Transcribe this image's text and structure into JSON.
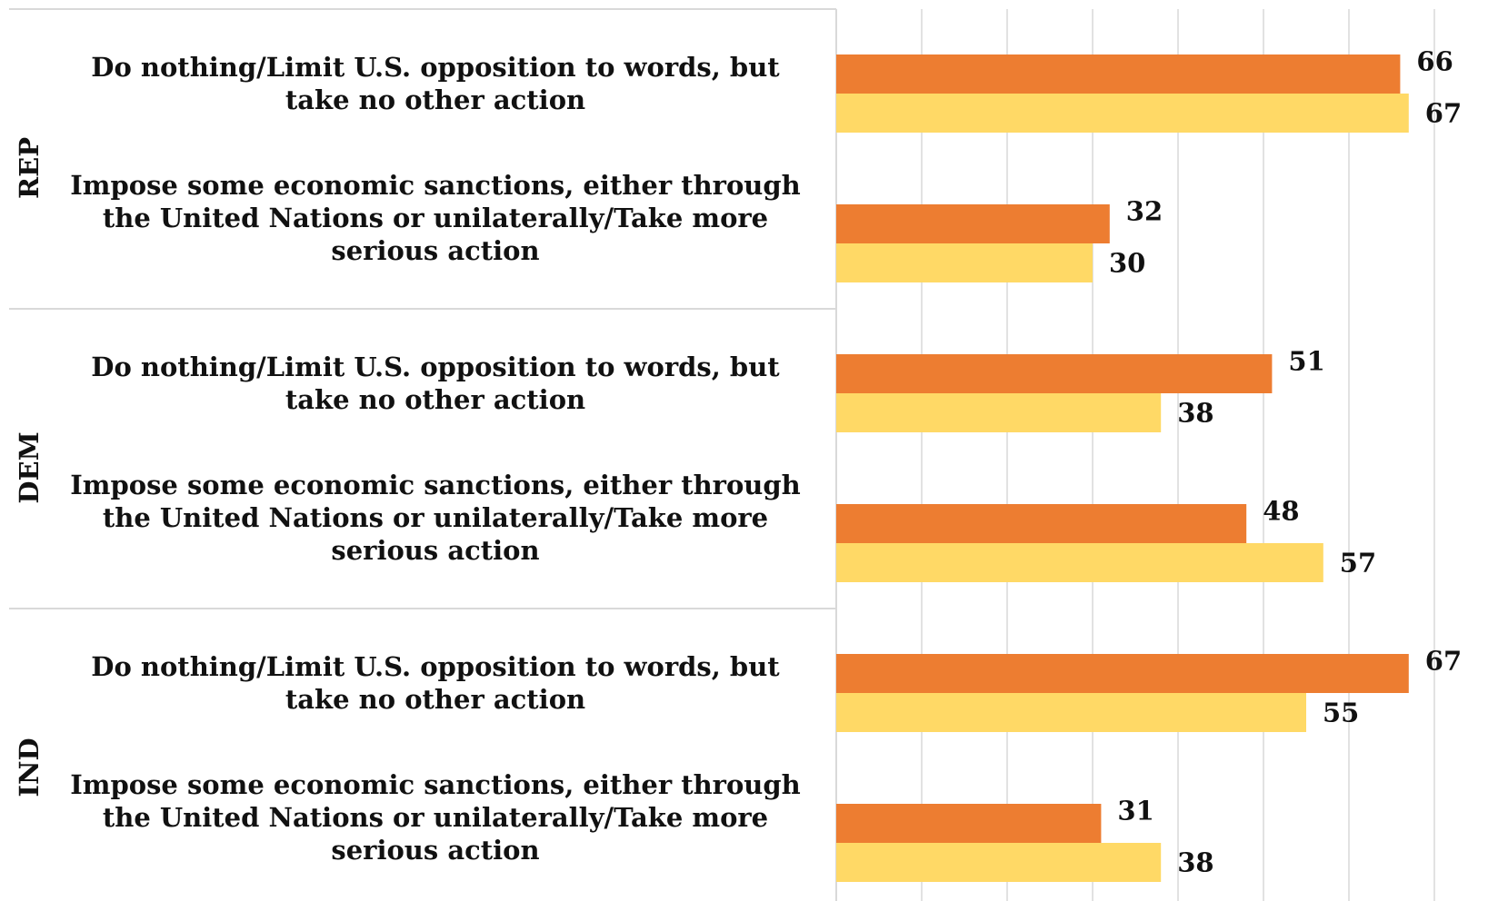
{
  "chart_data": {
    "type": "bar",
    "orientation": "horizontal",
    "xlim": [
      0,
      70
    ],
    "grid": true,
    "legend": "none",
    "series": [
      {
        "color": "#ED7D31"
      },
      {
        "color": "#FFD966"
      }
    ],
    "groups": [
      {
        "label": "REP",
        "categories": [
          {
            "label": "Do nothing/Limit U.S. opposition to words, but take no other action",
            "values": [
              66,
              67
            ]
          },
          {
            "label": "Impose some economic sanctions, either through the United Nations or unilaterally/Take more serious action",
            "values": [
              32,
              30
            ]
          }
        ]
      },
      {
        "label": "DEM",
        "categories": [
          {
            "label": "Do nothing/Limit U.S. opposition to words, but take no other action",
            "values": [
              51,
              38
            ]
          },
          {
            "label": "Impose some economic sanctions, either through the United Nations or unilaterally/Take more serious action",
            "values": [
              48,
              57
            ]
          }
        ]
      },
      {
        "label": "IND",
        "categories": [
          {
            "label": "Do nothing/Limit U.S. opposition to words, but take no other action",
            "values": [
              67,
              55
            ]
          },
          {
            "label": "Impose some economic sanctions, either through the United Nations or unilaterally/Take more serious action",
            "values": [
              31,
              38
            ]
          }
        ]
      }
    ]
  }
}
